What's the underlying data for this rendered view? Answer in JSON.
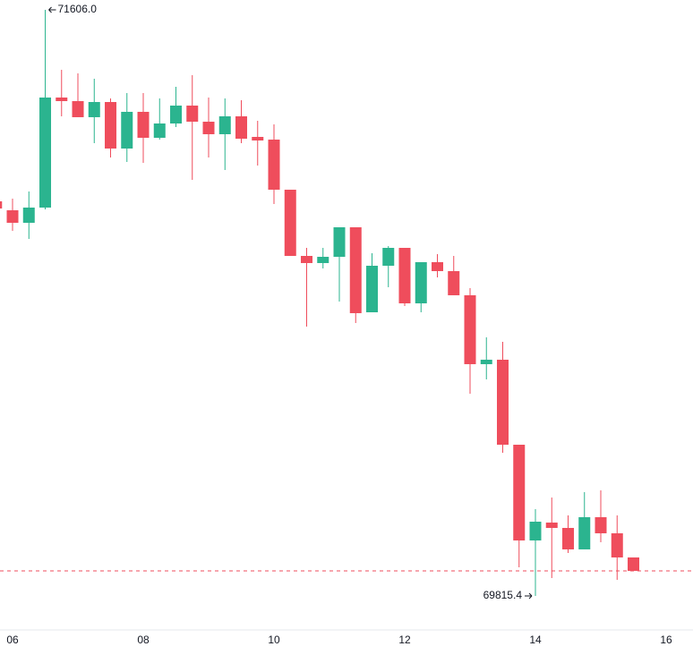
{
  "chart_data": {
    "type": "candlestick",
    "x": [
      5.75,
      6,
      6.25,
      6.5,
      6.75,
      7,
      7.25,
      7.5,
      7.75,
      8,
      8.25,
      8.5,
      8.75,
      9,
      9.25,
      9.5,
      9.75,
      10,
      10.25,
      10.5,
      10.75,
      11,
      11.25,
      11.5,
      11.75,
      12,
      12.25,
      12.5,
      12.75,
      13,
      13.25,
      13.5,
      13.75,
      14,
      14.25,
      14.5,
      14.75,
      15,
      15.25,
      15.5
    ],
    "open": [
      71021.0,
      70993.7,
      70955.4,
      71001.9,
      71338.1,
      71327.2,
      71278.0,
      71324.4,
      71182.3,
      71294.4,
      71215.1,
      71258.8,
      71313.5,
      71264.3,
      71226.0,
      71280.7,
      71217.8,
      71209.6,
      71056.5,
      70854.2,
      70832.4,
      70851.5,
      70941.7,
      70682.0,
      70824.2,
      70878.8,
      70709.3,
      70835.1,
      70807.8,
      70734.0,
      70523.5,
      70537.1,
      70277.4,
      69984.9,
      70039.6,
      70023.2,
      69957.6,
      70056.0,
      70006.8,
      69933.0
    ],
    "high": [
      71029.2,
      71029.2,
      71051.1,
      71606.0,
      71422.8,
      71411.9,
      71395.5,
      71335.4,
      71351.8,
      71351.8,
      71335.4,
      71370.9,
      71406.4,
      71338.1,
      71335.4,
      71329.9,
      71267.0,
      71256.1,
      71056.5,
      70878.8,
      70878.8,
      70941.7,
      70941.7,
      70862.4,
      70884.3,
      70878.8,
      70835.1,
      70859.7,
      70854.2,
      70755.8,
      70605.5,
      70591.8,
      70277.4,
      70080.6,
      70116.1,
      70061.5,
      70132.5,
      70138.0,
      70061.5,
      69933.0
    ],
    "low": [
      70990.9,
      70930.8,
      70906.2,
      70996.4,
      71280.7,
      71278.0,
      71198.7,
      71154.9,
      71141.3,
      71138.5,
      71209.6,
      71247.9,
      71086.6,
      71154.9,
      71116.7,
      71198.7,
      71130.3,
      71012.8,
      70854.2,
      70638.3,
      70816.0,
      70714.8,
      70649.2,
      70682.0,
      70758.6,
      70701.1,
      70682.0,
      70788.6,
      70734.0,
      70433.2,
      70477.0,
      70252.8,
      69902.9,
      69815.4,
      69870.1,
      69946.6,
      69957.6,
      69979.5,
      69864.6,
      69892.0
    ],
    "close": [
      70999.1,
      70955.4,
      71001.9,
      71338.1,
      71327.2,
      71278.0,
      71324.4,
      71182.3,
      71294.4,
      71215.1,
      71258.8,
      71313.5,
      71264.3,
      71226.0,
      71280.7,
      71212.3,
      71206.9,
      71056.5,
      70854.2,
      70832.4,
      70851.5,
      70941.7,
      70679.3,
      70824.2,
      70878.8,
      70709.3,
      70835.1,
      70807.8,
      70734.0,
      70523.5,
      70537.1,
      70277.4,
      69984.9,
      70042.3,
      70023.2,
      69957.6,
      70056.0,
      70006.8,
      69933.0,
      69892.0
    ],
    "up_color": "#2bb48f",
    "down_color": "#ef4d5c",
    "xlim": [
      5.808,
      16.411
    ],
    "xticks": [
      {
        "value": 6,
        "label": "06"
      },
      {
        "value": 8,
        "label": "08"
      },
      {
        "value": 10,
        "label": "10"
      },
      {
        "value": 12,
        "label": "12"
      },
      {
        "value": 14,
        "label": "14"
      },
      {
        "value": 16,
        "label": "16"
      }
    ],
    "annotations": [
      {
        "x": 6.5,
        "value": 71606.0,
        "label": "71606.0"
      },
      {
        "x": 14,
        "value": 69815.4,
        "label": "69815.4"
      }
    ],
    "last_price_line": true
  }
}
